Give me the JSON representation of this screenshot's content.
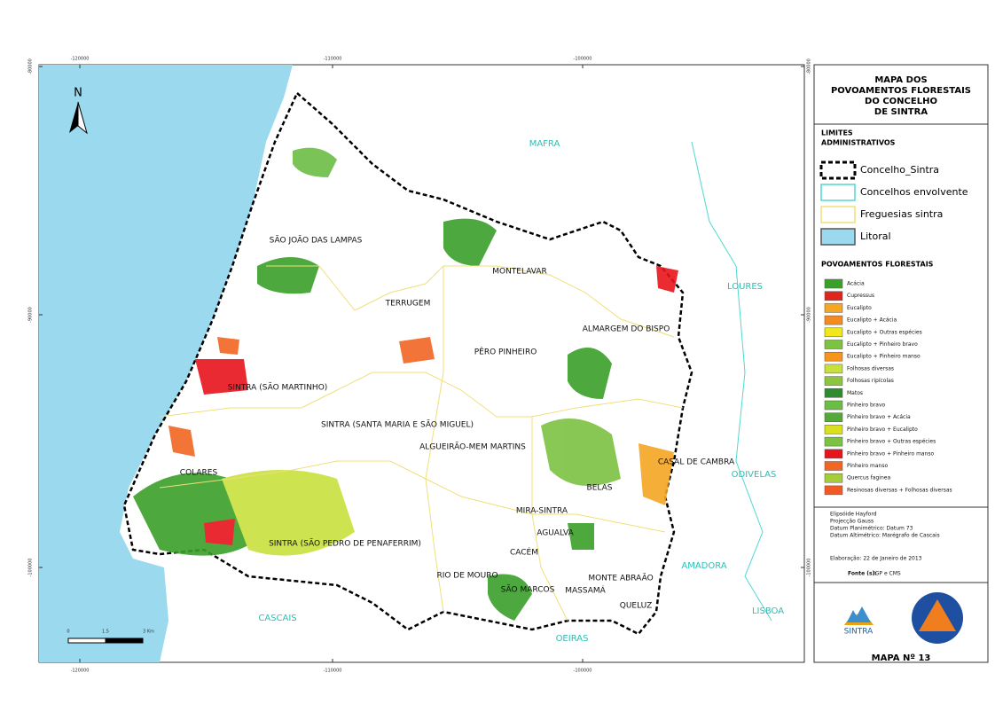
{
  "grid_labels": {
    "top": [
      "-120000",
      "-110000",
      "-100000"
    ],
    "bottom": [
      "-120000",
      "-110000",
      "-100000"
    ],
    "left": [
      "-80000",
      "-90000",
      "-100000"
    ],
    "right": [
      "-80000",
      "-90000",
      "-100000"
    ]
  },
  "map": {
    "north": "N",
    "scale": [
      "0",
      "1.5",
      "3 Km"
    ],
    "neighbours": [
      "MAFRA",
      "LOURES",
      "ODIVELAS",
      "AMADORA",
      "LISBOA",
      "OEIRAS",
      "CASCAIS"
    ],
    "parishes": [
      "SÃO JOÃO DAS LAMPAS",
      "TERRUGEM",
      "MONTELAVAR",
      "ALMARGEM DO BISPO",
      "PÊRO PINHEIRO",
      "SINTRA (SÃO MARTINHO)",
      "SINTRA (SANTA MARIA E SÃO MIGUEL)",
      "ALGUEIRÃO-MEM MARTINS",
      "COLARES",
      "CASAL DE CAMBRA",
      "BELAS",
      "MIRA-SINTRA",
      "AGUALVA",
      "CACÉM",
      "SINTRA (SÃO PEDRO DE PENAFERRIM)",
      "RIO DE MOURO",
      "SÃO MARCOS",
      "MASSAMÁ",
      "MONTE ABRAÃO",
      "QUELUZ"
    ]
  },
  "legend": {
    "title": [
      "MAPA DOS",
      "POVOAMENTOS FLORESTAIS",
      "DO CONCELHO",
      "DE SINTRA"
    ],
    "limits_title": [
      "LIMITES",
      "ADMINISTRATIVOS"
    ],
    "limits": [
      {
        "label": "Concelho_Sintra",
        "border": "#000000",
        "fill": "#ffffff"
      },
      {
        "label": "Concelhos envolvente",
        "border": "#4fd8cf",
        "fill": "#ffffff"
      },
      {
        "label": "Freguesias sintra",
        "border": "#f0df7a",
        "fill": "#ffffff"
      },
      {
        "label": "Litoral",
        "border": "#555555",
        "fill": "#9bd9ee"
      }
    ],
    "forest_title": "POVOAMENTOS FLORESTAIS",
    "forest": [
      {
        "label": "Acácia",
        "color": "#3aa02a"
      },
      {
        "label": "Cupressus",
        "color": "#e0261c"
      },
      {
        "label": "Eucalipto",
        "color": "#f5a623"
      },
      {
        "label": "Eucalipto + Acácia",
        "color": "#f58a1f"
      },
      {
        "label": "Eucalipto + Outras espécies",
        "color": "#f0e81c"
      },
      {
        "label": "Eucalipto + Pinheiro bravo",
        "color": "#7dc242"
      },
      {
        "label": "Eucalipto + Pinheiro manso",
        "color": "#f7941d"
      },
      {
        "label": "Folhosas diversas",
        "color": "#c8e03c"
      },
      {
        "label": "Folhosas ripícolas",
        "color": "#8cc63f"
      },
      {
        "label": "Matos",
        "color": "#2e8b2e"
      },
      {
        "label": "Pinheiro bravo",
        "color": "#6abd45"
      },
      {
        "label": "Pinheiro bravo + Acácia",
        "color": "#57a83a"
      },
      {
        "label": "Pinheiro bravo + Eucalipto",
        "color": "#d9e021"
      },
      {
        "label": "Pinheiro bravo + Outras espécies",
        "color": "#7cc242"
      },
      {
        "label": "Pinheiro bravo + Pinheiro manso",
        "color": "#e8141c"
      },
      {
        "label": "Pinheiro manso",
        "color": "#f26522"
      },
      {
        "label": "Quercus faginea",
        "color": "#a6ce39"
      },
      {
        "label": "Resinosas diversas + Folhosas diversas",
        "color": "#f15a24"
      }
    ],
    "notes": [
      "Elipsóide Hayford",
      "Projecção Gauss",
      "Datum Planimétrico: Datum 73",
      "Datum Altimétrico: Marégrafo de Cascais"
    ],
    "date": "Elaboração: 22 de Janeiro de 2013",
    "source_label": "Fonte (s):",
    "source": "IGP e CMS",
    "logo": "SINTRA",
    "map_number": "MAPA Nº 13"
  }
}
